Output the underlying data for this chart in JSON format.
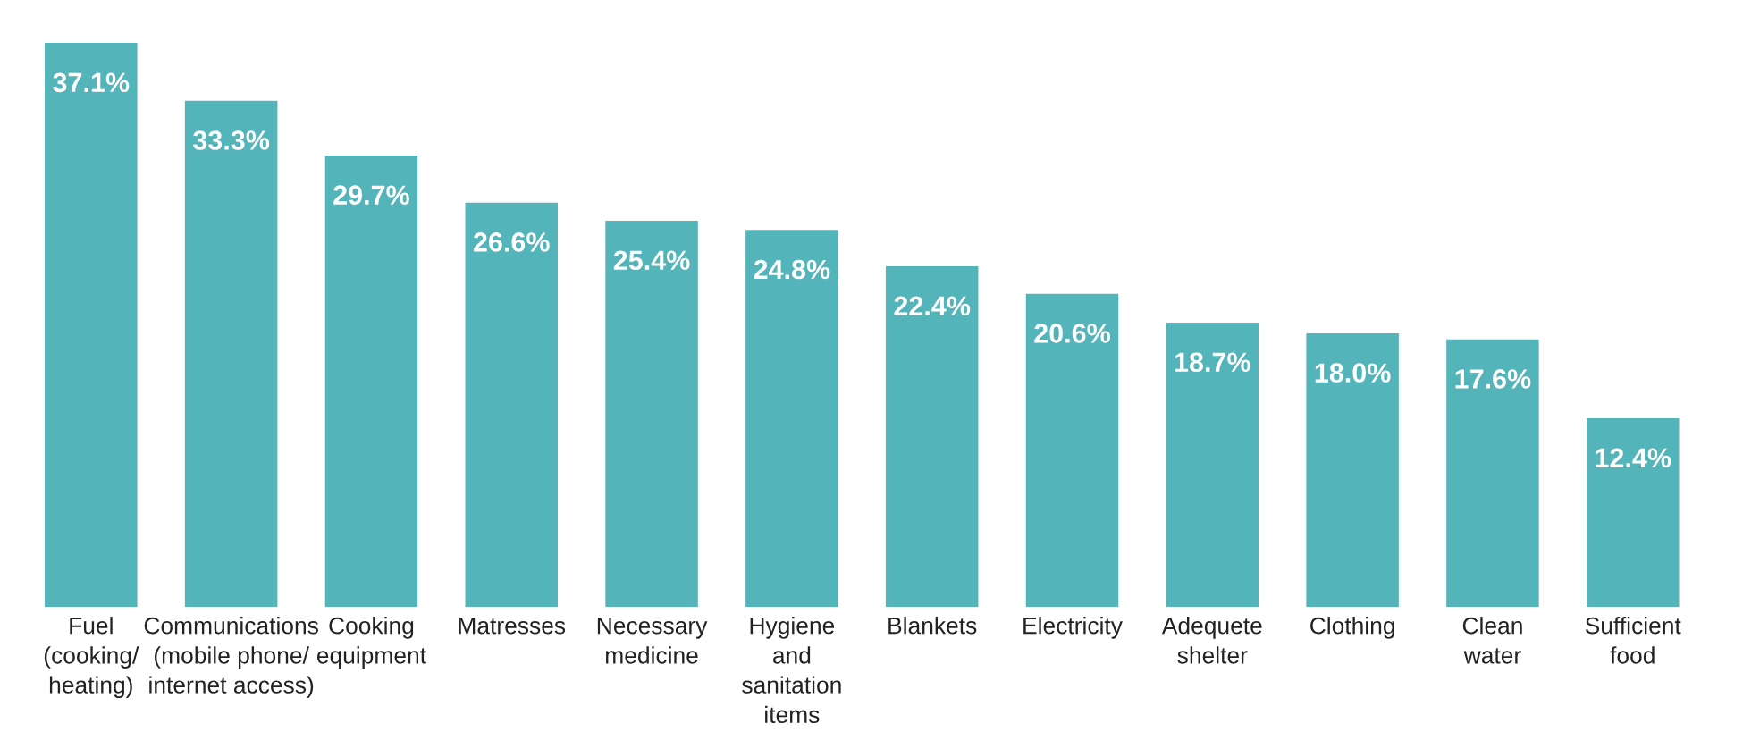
{
  "chart_data": {
    "type": "bar",
    "categories": [
      "Fuel\n(cooking/\nheating)",
      "Communications\n(mobile phone/\ninternet access)",
      "Cooking\nequipment",
      "Matresses",
      "Necessary\nmedicine",
      "Hygiene\nand\nsanitation\nitems",
      "Blankets",
      "Electricity",
      "Adequete\nshelter",
      "Clothing",
      "Clean\nwater",
      "Sufficient\nfood"
    ],
    "values": [
      37.1,
      33.3,
      29.7,
      26.6,
      25.4,
      24.8,
      22.4,
      20.6,
      18.7,
      18.0,
      17.6,
      12.4
    ],
    "value_labels": [
      "37.1%",
      "33.3%",
      "29.7%",
      "26.6%",
      "25.4%",
      "24.8%",
      "22.4%",
      "20.6%",
      "18.7%",
      "18.0%",
      "17.6%",
      "12.4%"
    ],
    "color": "#53b5b9"
  }
}
